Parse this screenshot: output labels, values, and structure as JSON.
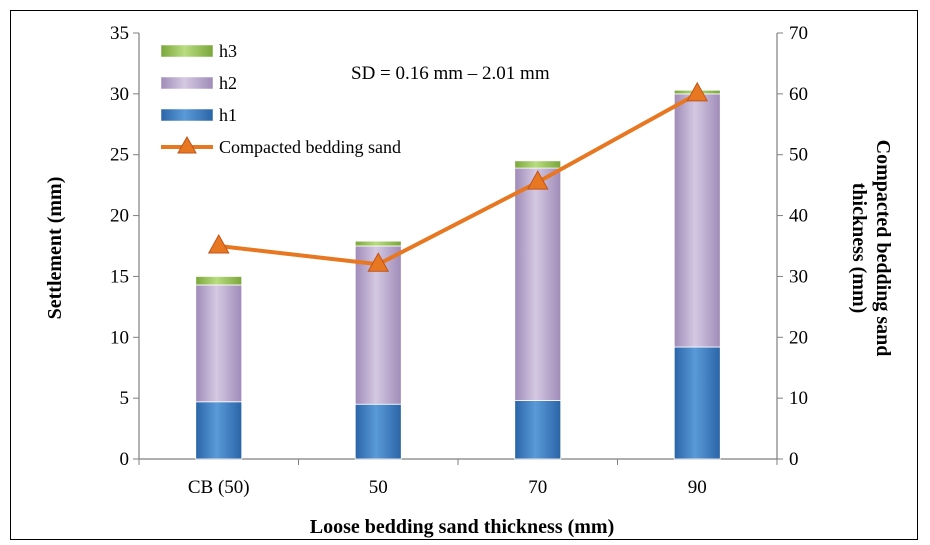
{
  "chart_data": {
    "type": "bar",
    "stacked": true,
    "categories": [
      "CB (50)",
      "50",
      "70",
      "90"
    ],
    "series": [
      {
        "name": "h1",
        "axis": "left",
        "values": [
          4.7,
          4.5,
          4.8,
          9.2
        ],
        "color": "#3b7fc4"
      },
      {
        "name": "h2",
        "axis": "left",
        "values": [
          9.6,
          13.0,
          19.1,
          20.8
        ],
        "color": "#b3a2c7"
      },
      {
        "name": "h3",
        "axis": "left",
        "values": [
          0.7,
          0.4,
          0.6,
          0.3
        ],
        "color": "#92c050"
      }
    ],
    "line_series": {
      "name": "Compacted bedding sand",
      "type": "line",
      "axis": "right",
      "values": [
        35,
        32,
        45.5,
        60
      ],
      "color": "#e87722",
      "marker": "triangle"
    },
    "xlabel": "Loose bedding sand thickness (mm)",
    "ylabel": "Settlement (mm)",
    "y2label_lines": [
      "Compacted bedding sand",
      "thickness (mm)"
    ],
    "ylim": [
      0,
      35
    ],
    "y2lim": [
      0,
      70
    ],
    "yticks": [
      "0",
      "5",
      "10",
      "15",
      "20",
      "25",
      "30",
      "35"
    ],
    "y2ticks": [
      "0",
      "10",
      "20",
      "30",
      "40",
      "50",
      "60",
      "70"
    ],
    "annotation": "SD = 0.16 mm – 2.01 mm",
    "legend": [
      "h3",
      "h2",
      "h1",
      "Compacted bedding sand"
    ],
    "legend_position": "top-left",
    "grid": false
  }
}
